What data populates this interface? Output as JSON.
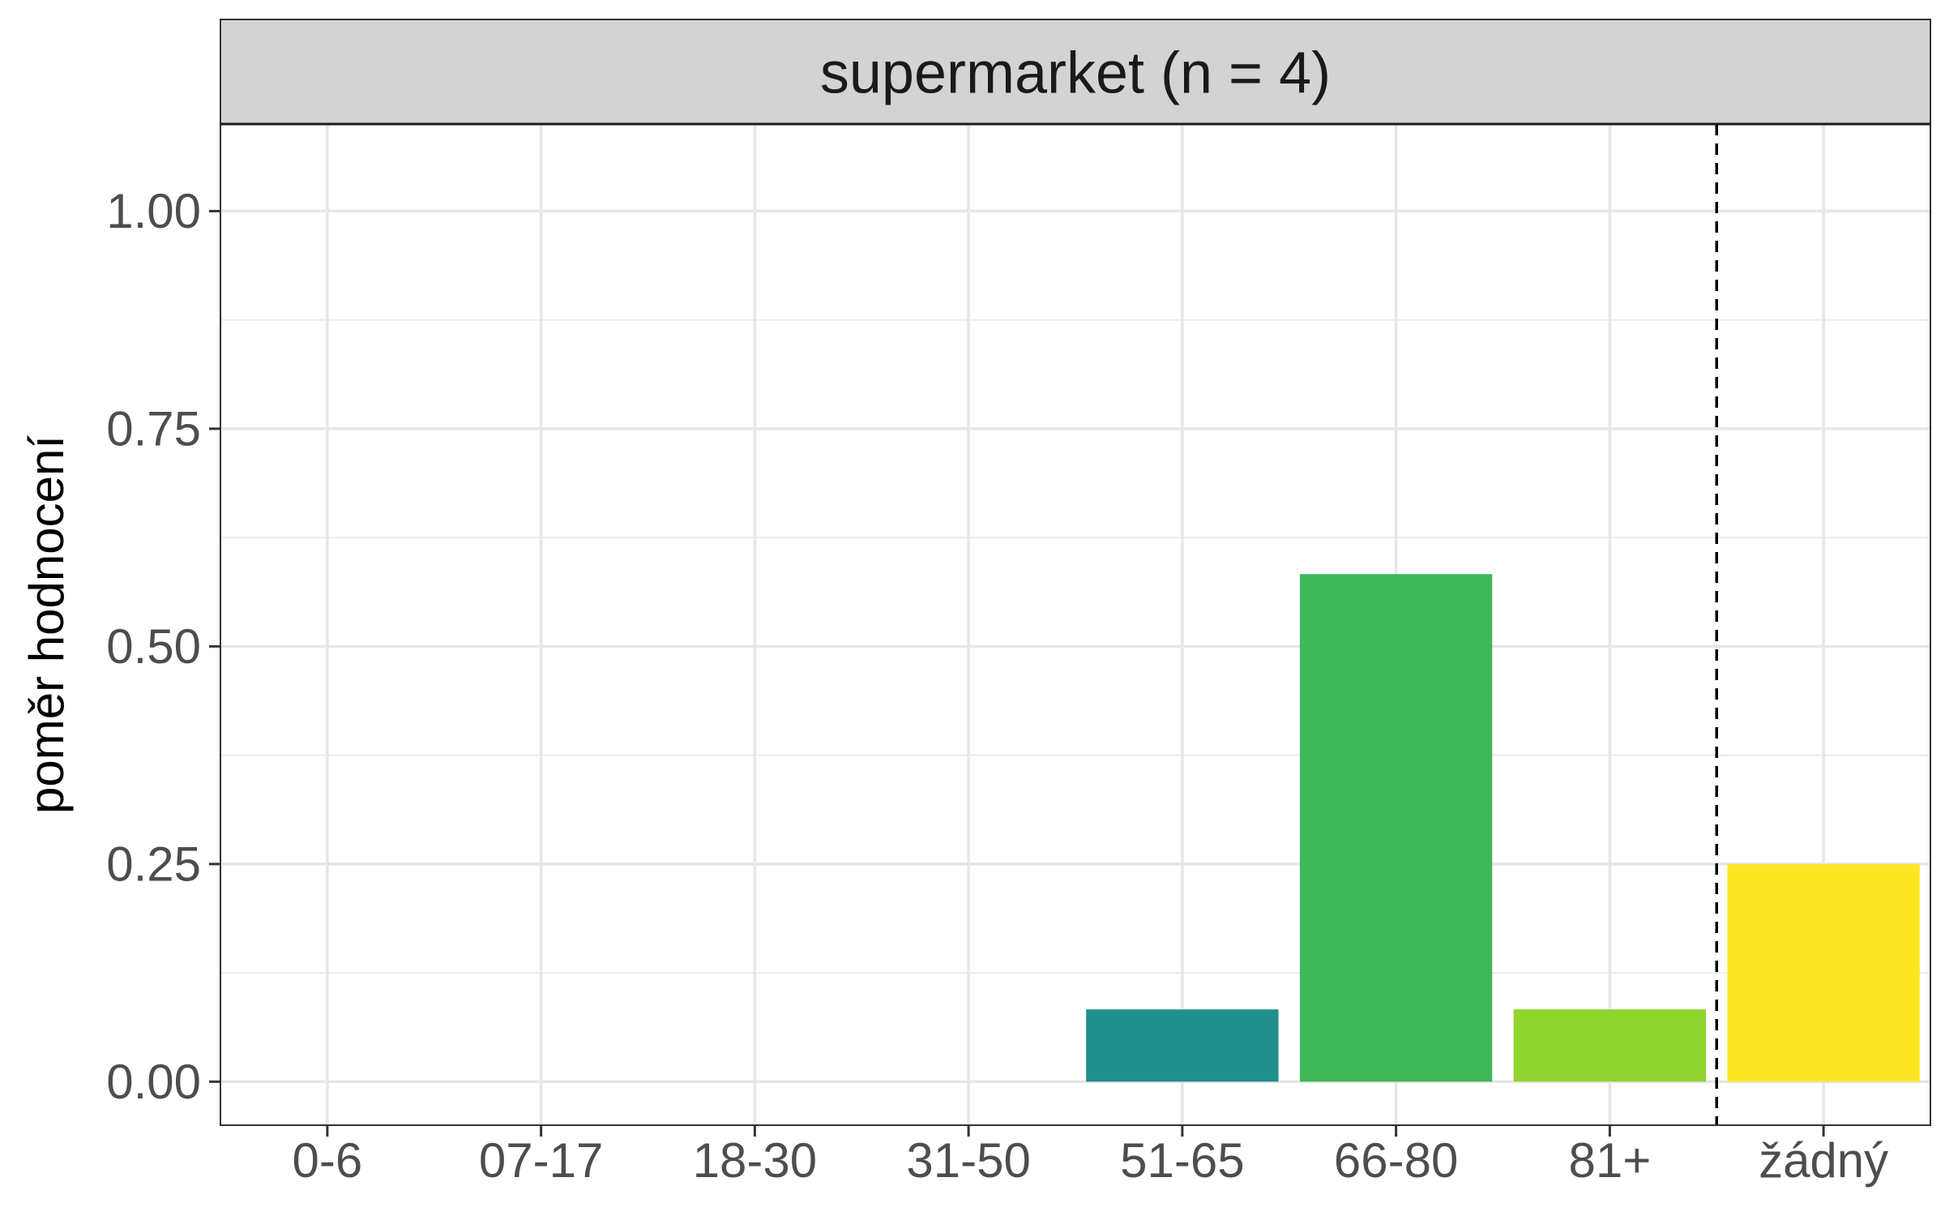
{
  "chart_data": {
    "type": "bar",
    "title": "supermarket (n = 4)",
    "xlabel": "",
    "ylabel": "poměr hodnocení",
    "categories": [
      "0-6",
      "07-17",
      "18-30",
      "31-50",
      "51-65",
      "66-80",
      "81+",
      "žádný"
    ],
    "values": [
      0,
      0,
      0,
      0,
      0.083,
      0.583,
      0.083,
      0.25
    ],
    "colors": [
      "#440154",
      "#46337E",
      "#365C8D",
      "#277F8E",
      "#21908C",
      "#3FB858",
      "#8FD42F",
      "#FDE725"
    ],
    "ylim": [
      -0.05,
      1.1
    ],
    "yticks": [
      0,
      0.25,
      0.5,
      0.75,
      1.0
    ],
    "ytick_labels": [
      "0.00",
      "0.25",
      "0.50",
      "0.75",
      "1.00"
    ],
    "grid": true,
    "reference_line": {
      "style": "dashed",
      "between": [
        "81+",
        "žádný"
      ]
    }
  }
}
